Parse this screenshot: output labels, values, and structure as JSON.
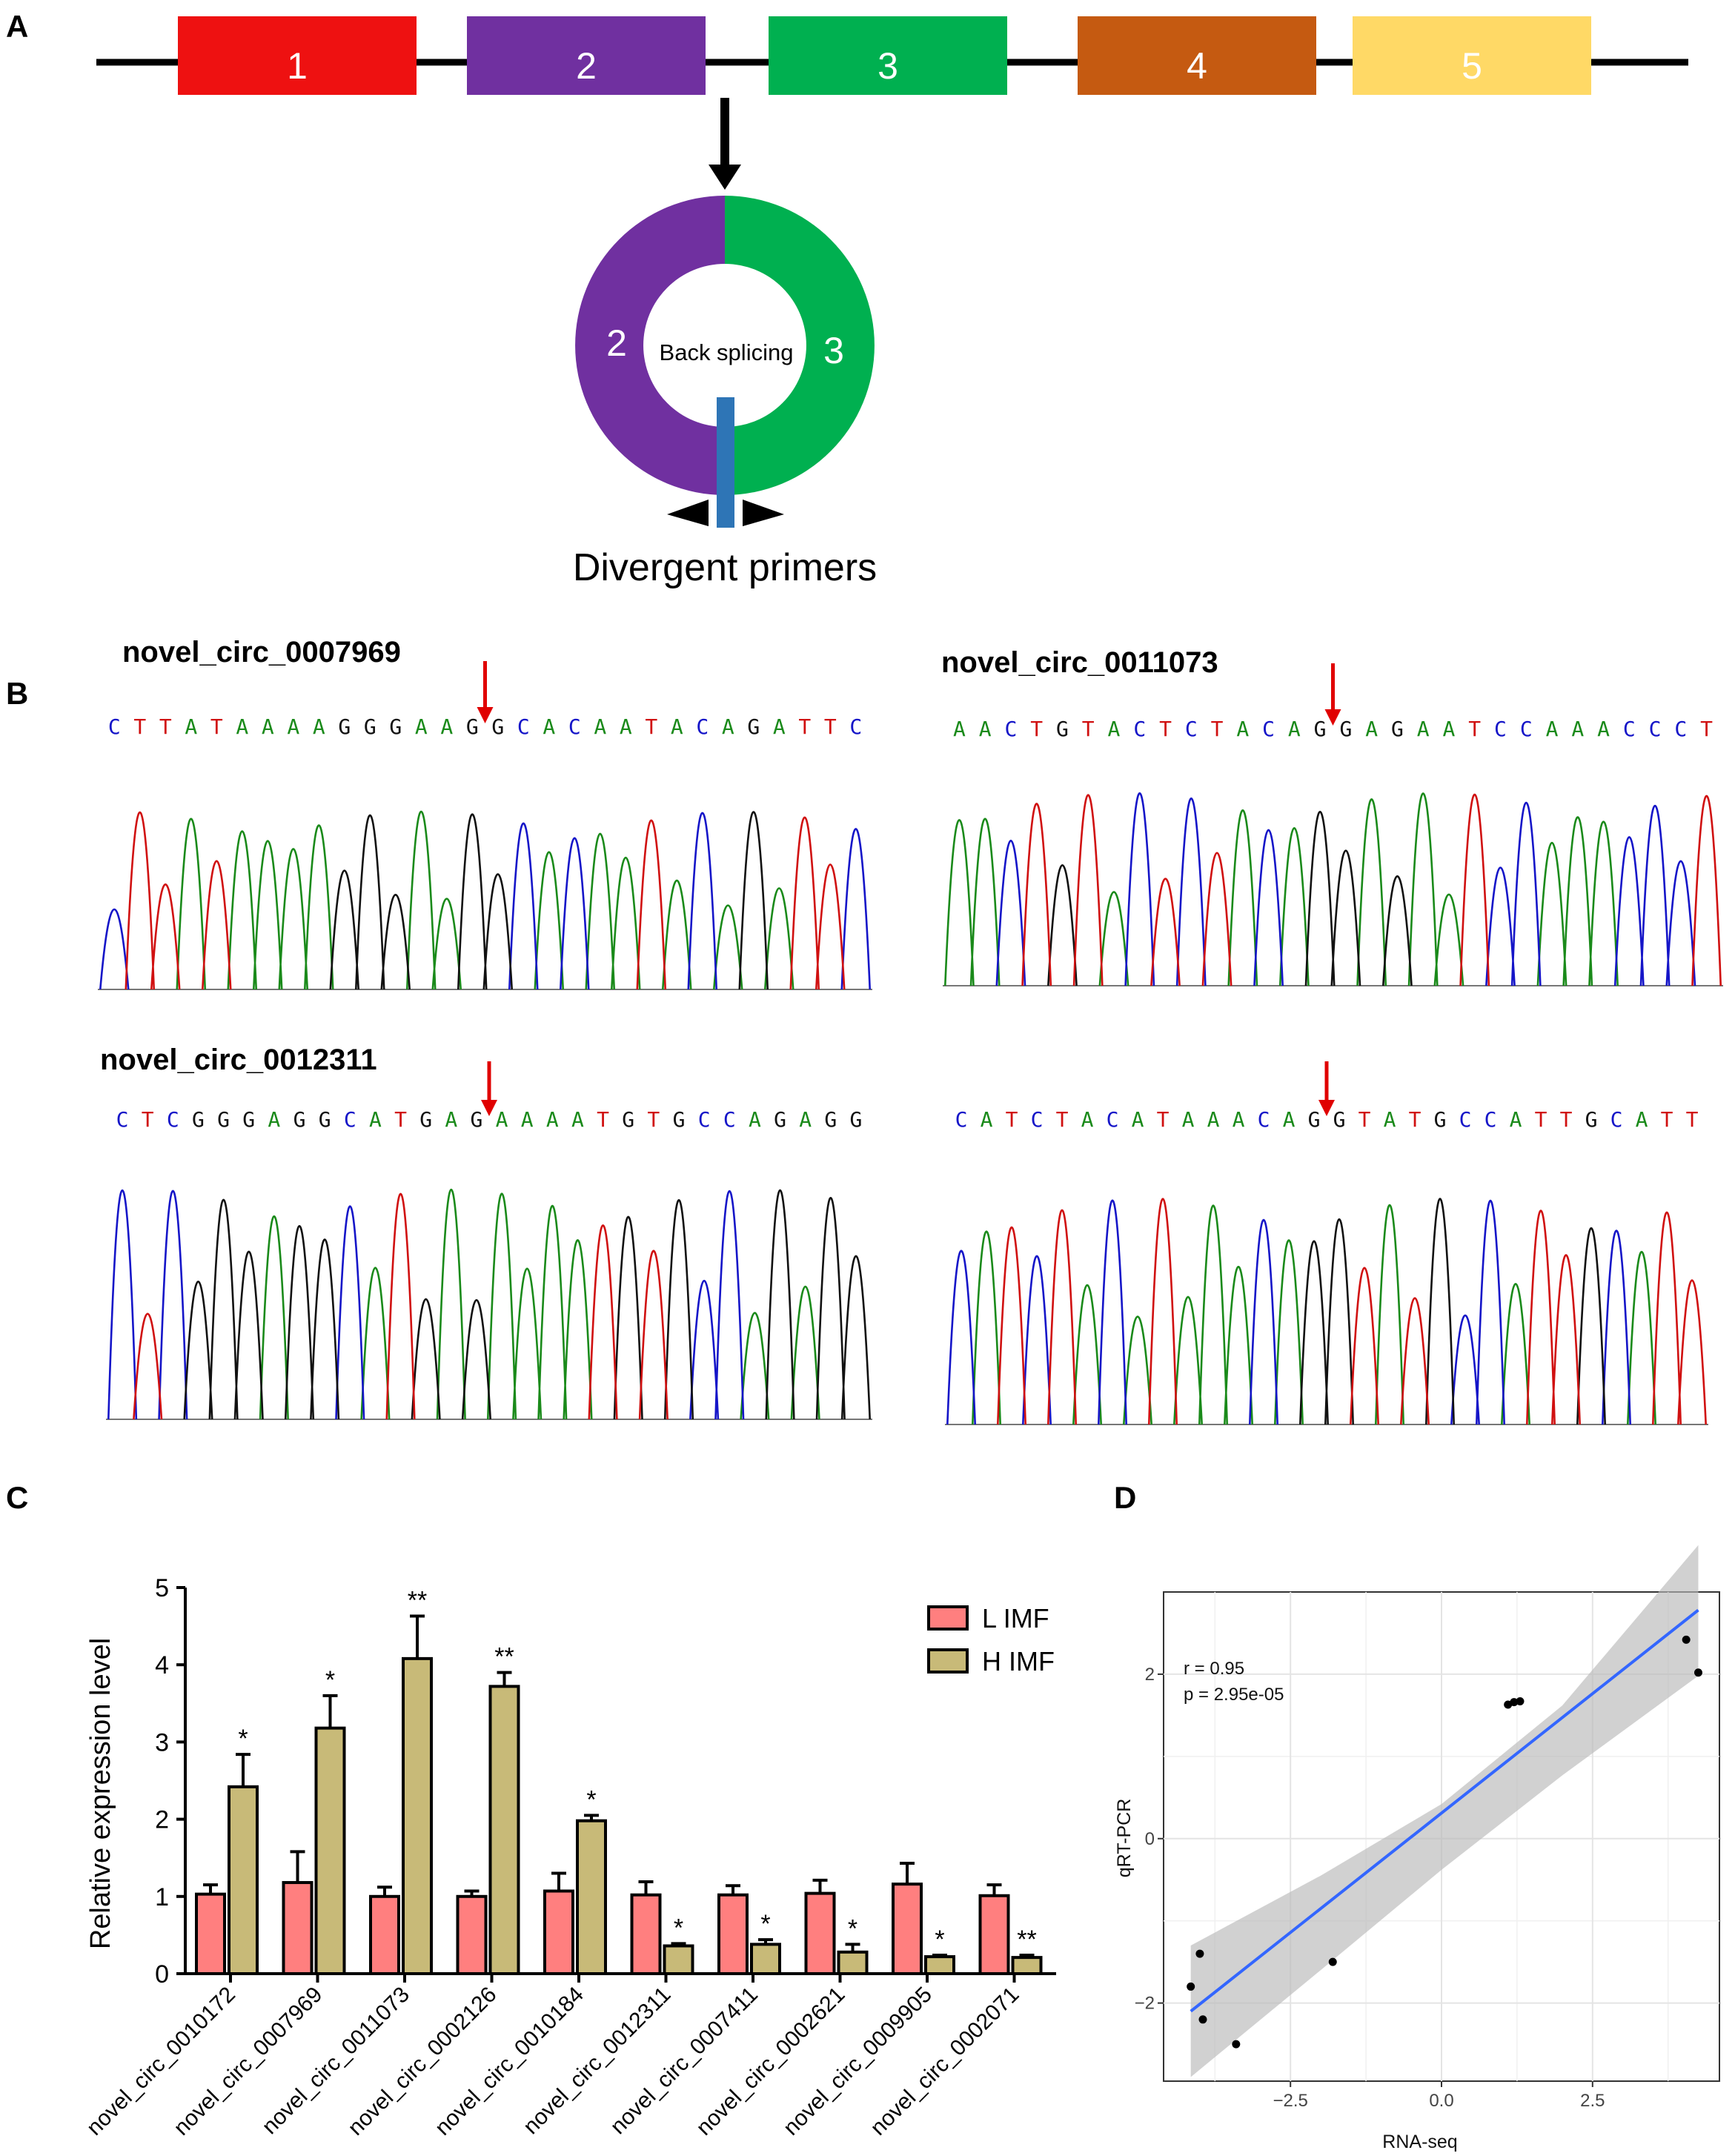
{
  "panels": {
    "a": "A",
    "b": "B",
    "c": "C",
    "d": "D"
  },
  "colors": {
    "A": "#1a8a1a",
    "C": "#1515c8",
    "G": "#111111",
    "T": "#d01010"
  },
  "panelA": {
    "exons": [
      {
        "label": "1",
        "color": "#EE1111"
      },
      {
        "label": "2",
        "color": "#7030A0"
      },
      {
        "label": "3",
        "color": "#00B050"
      },
      {
        "label": "4",
        "color": "#C55A11"
      },
      {
        "label": "5",
        "color": "#FFD966"
      }
    ],
    "circle_left": "2",
    "circle_right": "3",
    "center_label": "Back splicing",
    "primer_label": "Divergent primers"
  },
  "panelB": {
    "traces": [
      {
        "title": "novel_circ_0007969",
        "sequence": "CTTATAAAAGGGAAGGCACAATACAGATTC",
        "junction": 15
      },
      {
        "title": "novel_circ_0011073",
        "sequence": "AACTGTACTCTACAGGAGAATCCAAACCCT",
        "junction": 15
      },
      {
        "title": "novel_circ_0012311",
        "sequence": "CTCGGGAGGCATGAGAAAATGTGCCAGAGG",
        "junction": 15
      },
      {
        "title": "",
        "sequence": "CATCTACATAAACAGGTATGCCATTGCATT",
        "junction": 15
      }
    ]
  },
  "chart_data": [
    {
      "type": "bar",
      "ylabel": "Relative expression level",
      "ylim": [
        0,
        5
      ],
      "yticks": [
        "0",
        "1",
        "2",
        "3",
        "4",
        "5"
      ],
      "legend_position": "top-right",
      "categories": [
        "novel_circ_0010172",
        "novel_circ_0007969",
        "novel_circ_0011073",
        "novel_circ_0002126",
        "novel_circ_0010184",
        "novel_circ_0012311",
        "novel_circ_0007411",
        "novel_circ_0002621",
        "novel_circ_0009905",
        "novel_circ_0002071"
      ],
      "series": [
        {
          "name": "L IMF",
          "color": "#FF7F7F",
          "values": [
            1.03,
            1.18,
            1.0,
            1.0,
            1.07,
            1.02,
            1.02,
            1.04,
            1.16,
            1.01
          ],
          "errors": [
            0.12,
            0.4,
            0.12,
            0.07,
            0.23,
            0.17,
            0.12,
            0.17,
            0.27,
            0.14
          ]
        },
        {
          "name": "H IMF",
          "color": "#C8BA78",
          "values": [
            2.42,
            3.18,
            4.08,
            3.72,
            1.98,
            0.36,
            0.38,
            0.28,
            0.22,
            0.21
          ],
          "errors": [
            0.42,
            0.42,
            0.55,
            0.18,
            0.07,
            0.03,
            0.06,
            0.1,
            0.02,
            0.03
          ]
        }
      ],
      "significance": [
        "*",
        "*",
        "**",
        "**",
        "*",
        "*",
        "*",
        "*",
        "*",
        "**"
      ]
    },
    {
      "type": "scatter",
      "xlabel": "RNA-seq",
      "ylabel": "qRT-PCR",
      "xlim": [
        -4.6,
        4.6
      ],
      "ylim": [
        -2.95,
        3.0
      ],
      "xticks": [
        -2.5,
        0.0,
        2.5
      ],
      "xtick_labels": [
        "−2.5",
        "0.0",
        "2.5"
      ],
      "yticks": [
        -2,
        0,
        2
      ],
      "ytick_labels": [
        "−2",
        "0",
        "2"
      ],
      "points": [
        {
          "x": -4.15,
          "y": -1.8
        },
        {
          "x": -4.0,
          "y": -1.4
        },
        {
          "x": -3.95,
          "y": -2.2
        },
        {
          "x": -3.4,
          "y": -2.5
        },
        {
          "x": -1.8,
          "y": -1.5
        },
        {
          "x": 1.1,
          "y": 1.63
        },
        {
          "x": 1.2,
          "y": 1.66
        },
        {
          "x": 1.3,
          "y": 1.67
        },
        {
          "x": 4.05,
          "y": 2.42
        },
        {
          "x": 4.25,
          "y": 2.02
        }
      ],
      "fit": {
        "x": [
          -4.15,
          4.25
        ],
        "y": [
          -2.1,
          2.78
        ]
      },
      "band": {
        "x": [
          -4.15,
          -2.0,
          0.0,
          2.0,
          4.25
        ],
        "lower": [
          -2.9,
          -1.6,
          -0.38,
          0.77,
          1.98
        ],
        "upper": [
          -1.3,
          -0.45,
          0.42,
          1.62,
          3.57
        ]
      },
      "annotation": {
        "r": "r = 0.95",
        "p": "p = 2.95e-05"
      }
    }
  ]
}
